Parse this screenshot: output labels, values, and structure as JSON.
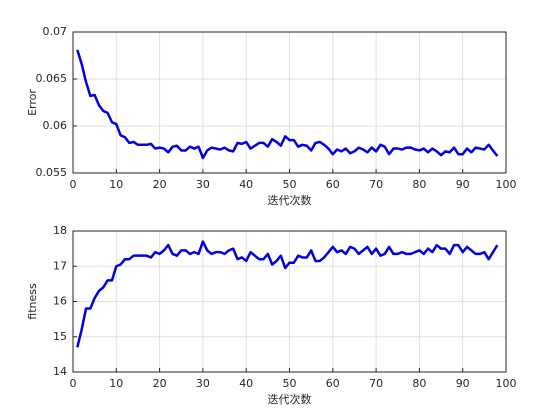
{
  "chart_data": [
    {
      "type": "line",
      "xlabel": "迭代次数",
      "ylabel": "Error",
      "x": [
        1,
        2,
        3,
        4,
        5,
        6,
        7,
        8,
        9,
        10,
        11,
        12,
        13,
        14,
        15,
        16,
        17,
        18,
        19,
        20,
        21,
        22,
        23,
        24,
        25,
        26,
        27,
        28,
        29,
        30,
        31,
        32,
        33,
        34,
        35,
        36,
        37,
        38,
        39,
        40,
        41,
        42,
        43,
        44,
        45,
        46,
        47,
        48,
        49,
        50,
        51,
        52,
        53,
        54,
        55,
        56,
        57,
        58,
        59,
        60,
        61,
        62,
        63,
        64,
        65,
        66,
        67,
        68,
        69,
        70,
        71,
        72,
        73,
        74,
        75,
        76,
        77,
        78,
        79,
        80,
        81,
        82,
        83,
        84,
        85,
        86,
        87,
        88,
        89,
        90,
        91,
        92,
        93,
        94,
        95,
        96,
        97,
        98
      ],
      "values": [
        0.0681,
        0.0666,
        0.0647,
        0.0632,
        0.0633,
        0.0622,
        0.0616,
        0.0614,
        0.0604,
        0.0602,
        0.059,
        0.0588,
        0.0582,
        0.0583,
        0.058,
        0.058,
        0.058,
        0.0581,
        0.0576,
        0.0577,
        0.0576,
        0.0572,
        0.0578,
        0.0579,
        0.0574,
        0.0574,
        0.0578,
        0.0576,
        0.0578,
        0.0566,
        0.0574,
        0.0577,
        0.0576,
        0.0575,
        0.0577,
        0.0574,
        0.0573,
        0.0582,
        0.0581,
        0.0583,
        0.0576,
        0.0579,
        0.0582,
        0.0582,
        0.0578,
        0.0586,
        0.0583,
        0.0579,
        0.0589,
        0.0585,
        0.0585,
        0.0578,
        0.058,
        0.0579,
        0.0574,
        0.0582,
        0.0583,
        0.058,
        0.0576,
        0.057,
        0.0575,
        0.0573,
        0.0576,
        0.0571,
        0.0573,
        0.0577,
        0.0575,
        0.0572,
        0.0577,
        0.0573,
        0.058,
        0.0578,
        0.057,
        0.0576,
        0.0576,
        0.0575,
        0.0577,
        0.0577,
        0.0575,
        0.0574,
        0.0576,
        0.0572,
        0.0576,
        0.0573,
        0.0569,
        0.0573,
        0.0572,
        0.0577,
        0.057,
        0.057,
        0.0576,
        0.0572,
        0.0577,
        0.0576,
        0.0575,
        0.058,
        0.0574,
        0.0568
      ],
      "color": "#0000e0",
      "xlim": [
        0,
        100
      ],
      "xticks": [
        0,
        10,
        20,
        30,
        40,
        50,
        60,
        70,
        80,
        90,
        100
      ],
      "ylim": [
        0.055,
        0.07
      ],
      "yticks": [
        0.055,
        0.06,
        0.065,
        0.07
      ],
      "grid": true
    },
    {
      "type": "line",
      "xlabel": "迭代次数",
      "ylabel": "fitness",
      "x": [
        1,
        2,
        3,
        4,
        5,
        6,
        7,
        8,
        9,
        10,
        11,
        12,
        13,
        14,
        15,
        16,
        17,
        18,
        19,
        20,
        21,
        22,
        23,
        24,
        25,
        26,
        27,
        28,
        29,
        30,
        31,
        32,
        33,
        34,
        35,
        36,
        37,
        38,
        39,
        40,
        41,
        42,
        43,
        44,
        45,
        46,
        47,
        48,
        49,
        50,
        51,
        52,
        53,
        54,
        55,
        56,
        57,
        58,
        59,
        60,
        61,
        62,
        63,
        64,
        65,
        66,
        67,
        68,
        69,
        70,
        71,
        72,
        73,
        74,
        75,
        76,
        77,
        78,
        79,
        80,
        81,
        82,
        83,
        84,
        85,
        86,
        87,
        88,
        89,
        90,
        91,
        92,
        93,
        94,
        95,
        96,
        97,
        98
      ],
      "values": [
        14.7,
        15.2,
        15.8,
        15.8,
        16.1,
        16.3,
        16.4,
        16.6,
        16.6,
        17.0,
        17.05,
        17.2,
        17.2,
        17.3,
        17.3,
        17.3,
        17.3,
        17.25,
        17.4,
        17.35,
        17.45,
        17.6,
        17.35,
        17.3,
        17.45,
        17.45,
        17.35,
        17.4,
        17.35,
        17.7,
        17.45,
        17.35,
        17.4,
        17.4,
        17.35,
        17.45,
        17.5,
        17.2,
        17.25,
        17.15,
        17.4,
        17.3,
        17.2,
        17.2,
        17.35,
        17.05,
        17.15,
        17.3,
        16.95,
        17.1,
        17.1,
        17.3,
        17.25,
        17.25,
        17.45,
        17.15,
        17.15,
        17.25,
        17.4,
        17.55,
        17.4,
        17.45,
        17.35,
        17.55,
        17.5,
        17.35,
        17.45,
        17.55,
        17.35,
        17.5,
        17.3,
        17.35,
        17.55,
        17.35,
        17.35,
        17.4,
        17.35,
        17.35,
        17.4,
        17.45,
        17.35,
        17.5,
        17.4,
        17.6,
        17.5,
        17.5,
        17.35,
        17.6,
        17.6,
        17.4,
        17.55,
        17.45,
        17.35,
        17.35,
        17.4,
        17.2,
        17.4,
        17.6
      ],
      "color": "#0000e0",
      "xlim": [
        0,
        100
      ],
      "xticks": [
        0,
        10,
        20,
        30,
        40,
        50,
        60,
        70,
        80,
        90,
        100
      ],
      "ylim": [
        14,
        18
      ],
      "yticks": [
        14,
        15,
        16,
        17,
        18
      ],
      "grid": true
    }
  ]
}
